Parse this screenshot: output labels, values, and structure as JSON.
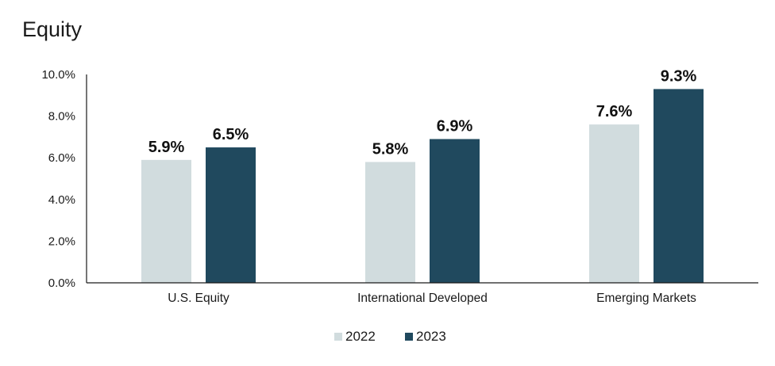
{
  "chart_data": {
    "type": "bar",
    "title": "Equity",
    "categories": [
      "U.S. Equity",
      "International Developed",
      "Emerging Markets"
    ],
    "series": [
      {
        "name": "2022",
        "values": [
          5.9,
          5.8,
          7.6
        ],
        "labels": [
          "5.9%",
          "5.8%",
          "7.6%"
        ],
        "color": "#d1dcde"
      },
      {
        "name": "2023",
        "values": [
          6.5,
          6.9,
          9.3
        ],
        "labels": [
          "6.5%",
          "6.9%",
          "9.3%"
        ],
        "color": "#20495e"
      }
    ],
    "ylim": [
      0,
      10
    ],
    "yticks": [
      0,
      2,
      4,
      6,
      8,
      10
    ],
    "ytick_labels": [
      "0.0%",
      "2.0%",
      "4.0%",
      "6.0%",
      "8.0%",
      "10.0%"
    ],
    "xlabel": "",
    "ylabel": "",
    "grid": false,
    "legend_position": "bottom-center"
  }
}
